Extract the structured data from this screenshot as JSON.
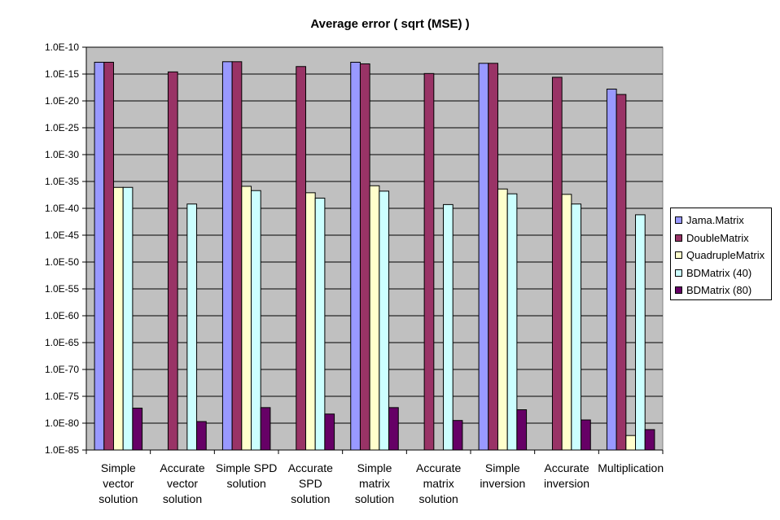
{
  "chart_data": {
    "type": "bar",
    "title": "Average error ( sqrt (MSE) )",
    "log_scale": true,
    "ylim_exponent": [
      -85,
      -10
    ],
    "ytick_labels": [
      "1.0E-10",
      "1.0E-15",
      "1.0E-20",
      "1.0E-25",
      "1.0E-30",
      "1.0E-35",
      "1.0E-40",
      "1.0E-45",
      "1.0E-50",
      "1.0E-55",
      "1.0E-60",
      "1.0E-65",
      "1.0E-70",
      "1.0E-75",
      "1.0E-80",
      "1.0E-85"
    ],
    "categories": [
      [
        "Simple",
        "vector",
        "solution"
      ],
      [
        "Accurate",
        "vector",
        "solution"
      ],
      [
        "Simple SPD",
        "solution"
      ],
      [
        "Accurate",
        "SPD",
        "solution"
      ],
      [
        "Simple",
        "matrix",
        "solution"
      ],
      [
        "Accurate",
        "matrix",
        "solution"
      ],
      [
        "Simple",
        "inversion"
      ],
      [
        "Accurate",
        "inversion"
      ],
      [
        "Multiplication"
      ]
    ],
    "series": [
      {
        "name": "Jama.Matrix",
        "color": "#9999ff",
        "values": [
          -12.8,
          null,
          -12.7,
          null,
          -12.8,
          null,
          -13.0,
          null,
          -17.8
        ]
      },
      {
        "name": "DoubleMatrix",
        "color": "#993366",
        "values": [
          -12.8,
          -14.6,
          -12.7,
          -13.6,
          -13.1,
          -14.9,
          -13.0,
          -15.6,
          -18.8
        ]
      },
      {
        "name": "QuadrupleMatrix",
        "color": "#ffffcc",
        "values": [
          -36.1,
          null,
          -35.9,
          -37.1,
          -35.8,
          null,
          -36.4,
          -37.4,
          -82.3
        ]
      },
      {
        "name": "BDMatrix (40)",
        "color": "#ccffff",
        "values": [
          -36.1,
          -39.2,
          -36.7,
          -38.1,
          -36.8,
          -39.3,
          -37.3,
          -39.2,
          -41.2
        ]
      },
      {
        "name": "BDMatrix (80)",
        "color": "#660066",
        "values": [
          -77.2,
          -79.7,
          -77.1,
          -78.3,
          -77.1,
          -79.5,
          -77.5,
          -79.4,
          -81.2
        ]
      }
    ],
    "grid": true,
    "legend_position": "right",
    "plot_background": "#c0c0c0"
  }
}
